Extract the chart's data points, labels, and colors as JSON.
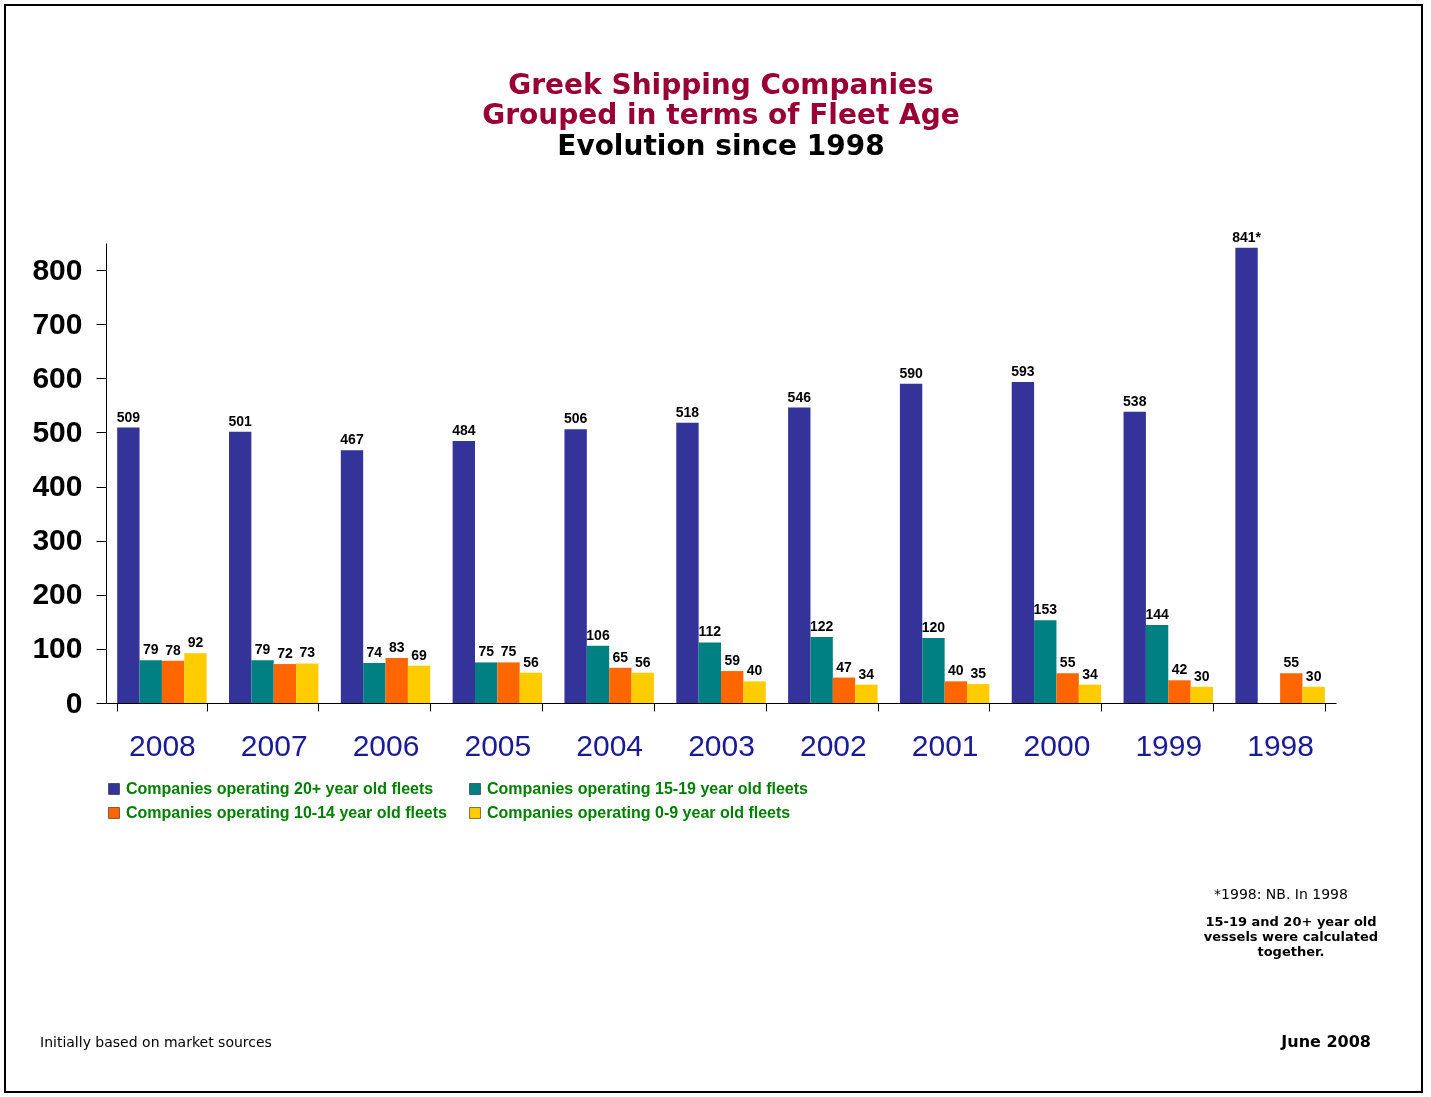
{
  "chart_data": {
    "type": "bar",
    "title": [
      "Greek Shipping Companies",
      "Grouped in terms of Fleet Age"
    ],
    "subtitle": "Evolution since 1998",
    "categories": [
      "2008",
      "2007",
      "2006",
      "2005",
      "2004",
      "2003",
      "2002",
      "2001",
      "2000",
      "1999",
      "1998"
    ],
    "series": [
      {
        "name": "Companies operating  20+ year old fleets",
        "color": "#333399",
        "values": [
          509,
          501,
          467,
          484,
          506,
          518,
          546,
          590,
          593,
          538,
          841
        ],
        "value_labels": [
          "509",
          "501",
          "467",
          "484",
          "506",
          "518",
          "546",
          "590",
          "593",
          "538",
          "841*"
        ]
      },
      {
        "name": "Companies operating 15-19 year old fleets",
        "color": "#008080",
        "values": [
          79,
          79,
          74,
          75,
          106,
          112,
          122,
          120,
          153,
          144,
          null
        ],
        "value_labels": [
          "79",
          "79",
          "74",
          "75",
          "106",
          "112",
          "122",
          "120",
          "153",
          "144",
          null
        ]
      },
      {
        "name": "Companies operating 10-14 year old fleets",
        "color": "#ff6600",
        "values": [
          78,
          72,
          83,
          75,
          65,
          59,
          47,
          40,
          55,
          42,
          55
        ],
        "value_labels": [
          "78",
          "72",
          "83",
          "75",
          "65",
          "59",
          "47",
          "40",
          "55",
          "42",
          "55"
        ]
      },
      {
        "name": "Companies operating 0-9 year old fleets",
        "color": "#ffcc00",
        "values": [
          92,
          73,
          69,
          56,
          56,
          40,
          34,
          35,
          34,
          30,
          30
        ],
        "value_labels": [
          "92",
          "73",
          "69",
          "56",
          "56",
          "40",
          "34",
          "35",
          "34",
          "30",
          "30"
        ]
      }
    ],
    "ylim": [
      0,
      850
    ],
    "yticks": [
      0,
      100,
      200,
      300,
      400,
      500,
      600,
      700,
      800
    ],
    "grid": false,
    "legend": "bottom",
    "annotations": [
      "*1998: NB. In 1998",
      "15-19 and 20+ year old vessels were calculated together.",
      "Initially based on market sources",
      "June 2008"
    ]
  }
}
